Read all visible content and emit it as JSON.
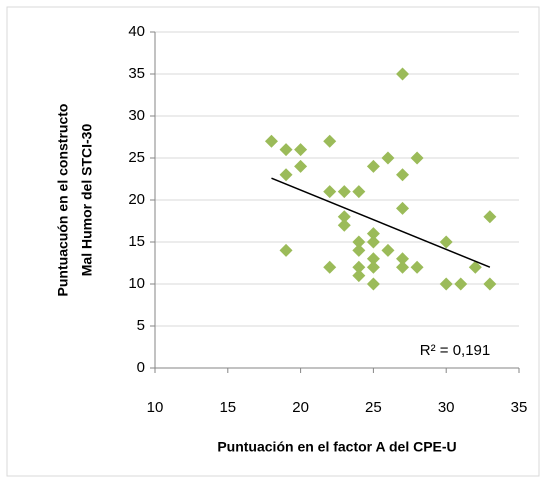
{
  "chart_data": {
    "type": "scatter",
    "xlabel": "Puntuación en el factor A del CPE-U",
    "ylabel": [
      "Puntuacuón en el constructo",
      "Mal Humor del STCI-30"
    ],
    "annotation": "R² = 0,191",
    "color": "#9bbb59",
    "grid": true,
    "xlim": [
      10,
      35
    ],
    "xticks": [
      10,
      15,
      20,
      25,
      30,
      35
    ],
    "ylim": [
      0,
      40
    ],
    "yticks": [
      0,
      5,
      10,
      15,
      20,
      25,
      30,
      35,
      40
    ],
    "x": [
      18,
      19,
      20,
      19,
      20,
      19,
      22,
      22,
      23,
      24,
      23,
      23,
      22,
      24,
      24,
      24,
      24,
      25,
      26,
      27,
      27,
      27,
      28,
      25,
      25,
      25,
      25,
      25,
      26,
      27,
      27,
      28,
      30,
      30,
      31,
      32,
      33,
      33
    ],
    "y": [
      27,
      26,
      26,
      23,
      24,
      14,
      27,
      21,
      21,
      21,
      18,
      17,
      12,
      15,
      14,
      12,
      11,
      24,
      25,
      35,
      23,
      19,
      25,
      16,
      15,
      13,
      12,
      10,
      14,
      13,
      12,
      12,
      15,
      10,
      10,
      12,
      18,
      10
    ],
    "trendline": {
      "x": [
        18,
        33
      ],
      "y": [
        22.6,
        12.0
      ]
    }
  }
}
